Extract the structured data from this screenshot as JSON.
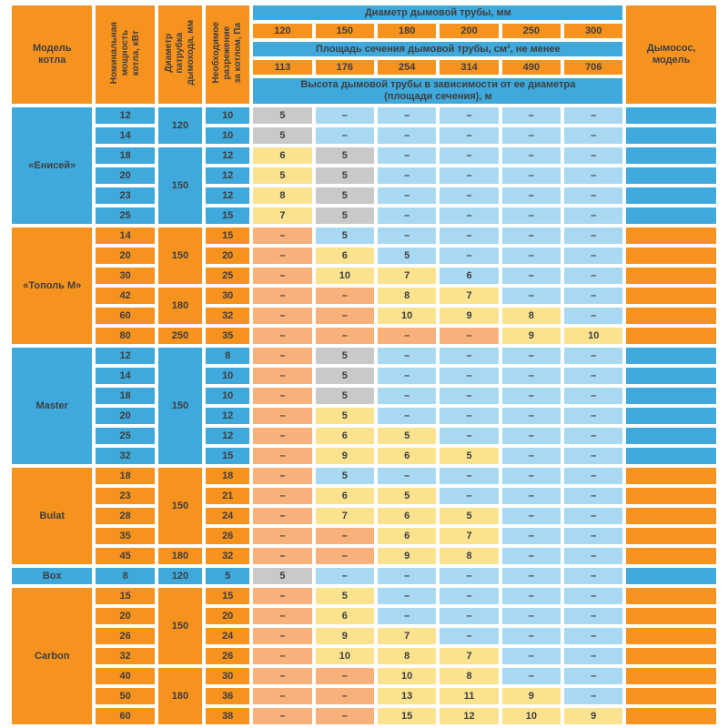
{
  "colors": {
    "orange": "#F6921E",
    "blue": "#3FA9DC",
    "light_blue": "#A9D8F3",
    "salmon": "#F9B17C",
    "yellow": "#FBE28F",
    "gray": "#C9C9C9",
    "text": "#3E3E3E",
    "background": "#FFFFFF"
  },
  "dash": "–",
  "header": {
    "col_model": "Модель\nкотла",
    "col_power": "Номинальная\nмощность\nкотла, кВт",
    "col_duct": "Диаметр\nпатрубка\nдымохода, мм",
    "col_draft": "Необходимое\nразрежение\nза котлом, Па",
    "diameter_title": "Диаметр дымовой трубы, мм",
    "area_title": "Площадь сечения дымовой трубы, см², не менее",
    "height_title": "Высота дымовой трубы в зависимости от ее диаметра\n(площади сечения), м",
    "fan_title": "Дымосос,\nмодель"
  },
  "chart_data": {
    "type": "table",
    "title": "Высота дымовой трубы в зависимости от ее диаметра",
    "diameters_mm": [
      "120",
      "150",
      "180",
      "200",
      "250",
      "300"
    ],
    "areas_cm2": [
      "113",
      "176",
      "254",
      "314",
      "490",
      "706"
    ],
    "cell_color_legend": {
      "g": "gray",
      "y": "yellow",
      "s": "salmon",
      "b": "light_blue"
    },
    "groups": [
      {
        "model": "«Енисей»",
        "theme": "blue",
        "ducts": [
          {
            "value": "120",
            "span": 2
          },
          {
            "value": "150",
            "span": 4
          }
        ],
        "rows": [
          {
            "power": "12",
            "draft": "10",
            "cells": [
              "g:5",
              "b:-",
              "b:-",
              "b:-",
              "b:-",
              "b:-"
            ]
          },
          {
            "power": "14",
            "draft": "10",
            "cells": [
              "g:5",
              "b:-",
              "b:-",
              "b:-",
              "b:-",
              "b:-"
            ]
          },
          {
            "power": "18",
            "draft": "12",
            "cells": [
              "y:6",
              "g:5",
              "b:-",
              "b:-",
              "b:-",
              "b:-"
            ]
          },
          {
            "power": "20",
            "draft": "12",
            "cells": [
              "y:5",
              "g:5",
              "b:-",
              "b:-",
              "b:-",
              "b:-"
            ]
          },
          {
            "power": "23",
            "draft": "12",
            "cells": [
              "y:8",
              "g:5",
              "b:-",
              "b:-",
              "b:-",
              "b:-"
            ]
          },
          {
            "power": "25",
            "draft": "15",
            "cells": [
              "y:7",
              "g:5",
              "b:-",
              "b:-",
              "b:-",
              "b:-"
            ]
          }
        ]
      },
      {
        "model": "«Тополь М»",
        "theme": "orange",
        "ducts": [
          {
            "value": "150",
            "span": 3
          },
          {
            "value": "180",
            "span": 2
          },
          {
            "value": "250",
            "span": 1
          }
        ],
        "rows": [
          {
            "power": "14",
            "draft": "15",
            "cells": [
              "s:-",
              "b:5",
              "b:-",
              "b:-",
              "b:-",
              "b:-"
            ]
          },
          {
            "power": "20",
            "draft": "20",
            "cells": [
              "s:-",
              "y:6",
              "b:5",
              "b:-",
              "b:-",
              "b:-"
            ]
          },
          {
            "power": "30",
            "draft": "25",
            "cells": [
              "s:-",
              "y:10",
              "y:7",
              "b:6",
              "b:-",
              "b:-"
            ]
          },
          {
            "power": "42",
            "draft": "30",
            "cells": [
              "s:-",
              "s:-",
              "y:8",
              "y:7",
              "b:-",
              "b:-"
            ]
          },
          {
            "power": "60",
            "draft": "32",
            "cells": [
              "s:-",
              "s:-",
              "y:10",
              "y:9",
              "y:8",
              "b:-"
            ]
          },
          {
            "power": "80",
            "draft": "35",
            "cells": [
              "s:-",
              "s:-",
              "s:-",
              "s:-",
              "y:9",
              "y:10"
            ]
          }
        ]
      },
      {
        "model": "Master",
        "theme": "blue",
        "ducts": [
          {
            "value": "150",
            "span": 6
          }
        ],
        "rows": [
          {
            "power": "12",
            "draft": "8",
            "cells": [
              "s:-",
              "g:5",
              "b:-",
              "b:-",
              "b:-",
              "b:-"
            ]
          },
          {
            "power": "14",
            "draft": "10",
            "cells": [
              "s:-",
              "g:5",
              "b:-",
              "b:-",
              "b:-",
              "b:-"
            ]
          },
          {
            "power": "18",
            "draft": "10",
            "cells": [
              "s:-",
              "g:5",
              "b:-",
              "b:-",
              "b:-",
              "b:-"
            ]
          },
          {
            "power": "20",
            "draft": "12",
            "cells": [
              "s:-",
              "y:5",
              "b:-",
              "b:-",
              "b:-",
              "b:-"
            ]
          },
          {
            "power": "25",
            "draft": "12",
            "cells": [
              "s:-",
              "y:6",
              "y:5",
              "b:-",
              "b:-",
              "b:-"
            ]
          },
          {
            "power": "32",
            "draft": "15",
            "cells": [
              "s:-",
              "y:9",
              "y:6",
              "y:5",
              "b:-",
              "b:-"
            ]
          }
        ]
      },
      {
        "model": "Bulat",
        "theme": "orange",
        "ducts": [
          {
            "value": "150",
            "span": 4
          },
          {
            "value": "180",
            "span": 1
          }
        ],
        "rows": [
          {
            "power": "18",
            "draft": "18",
            "cells": [
              "s:-",
              "b:5",
              "b:-",
              "b:-",
              "b:-",
              "b:-"
            ]
          },
          {
            "power": "23",
            "draft": "21",
            "cells": [
              "s:-",
              "y:6",
              "y:5",
              "b:-",
              "b:-",
              "b:-"
            ]
          },
          {
            "power": "28",
            "draft": "24",
            "cells": [
              "s:-",
              "y:7",
              "y:6",
              "y:5",
              "b:-",
              "b:-"
            ]
          },
          {
            "power": "35",
            "draft": "26",
            "cells": [
              "s:-",
              "s:-",
              "y:6",
              "y:7",
              "b:-",
              "b:-"
            ]
          },
          {
            "power": "45",
            "draft": "32",
            "cells": [
              "s:-",
              "s:-",
              "y:9",
              "y:8",
              "b:-",
              "b:-"
            ]
          }
        ]
      },
      {
        "model": "Box",
        "theme": "blue",
        "ducts": [
          {
            "value": "120",
            "span": 1
          }
        ],
        "rows": [
          {
            "power": "8",
            "draft": "5",
            "cells": [
              "g:5",
              "b:-",
              "b:-",
              "b:-",
              "b:-",
              "b:-"
            ]
          }
        ]
      },
      {
        "model": "Carbon",
        "theme": "orange",
        "ducts": [
          {
            "value": "150",
            "span": 4
          },
          {
            "value": "180",
            "span": 3
          }
        ],
        "rows": [
          {
            "power": "15",
            "draft": "15",
            "cells": [
              "s:-",
              "y:5",
              "b:-",
              "b:-",
              "b:-",
              "b:-"
            ]
          },
          {
            "power": "20",
            "draft": "20",
            "cells": [
              "s:-",
              "y:6",
              "b:-",
              "b:-",
              "b:-",
              "b:-"
            ]
          },
          {
            "power": "26",
            "draft": "24",
            "cells": [
              "s:-",
              "y:9",
              "y:7",
              "b:-",
              "b:-",
              "b:-"
            ]
          },
          {
            "power": "32",
            "draft": "26",
            "cells": [
              "s:-",
              "y:10",
              "y:8",
              "y:7",
              "b:-",
              "b:-"
            ]
          },
          {
            "power": "40",
            "draft": "30",
            "cells": [
              "s:-",
              "s:-",
              "y:10",
              "y:8",
              "b:-",
              "b:-"
            ]
          },
          {
            "power": "50",
            "draft": "36",
            "cells": [
              "s:-",
              "s:-",
              "y:13",
              "y:11",
              "y:9",
              "b:-"
            ]
          },
          {
            "power": "60",
            "draft": "38",
            "cells": [
              "s:-",
              "s:-",
              "y:15",
              "y:12",
              "y:10",
              "y:9"
            ]
          }
        ]
      }
    ]
  }
}
